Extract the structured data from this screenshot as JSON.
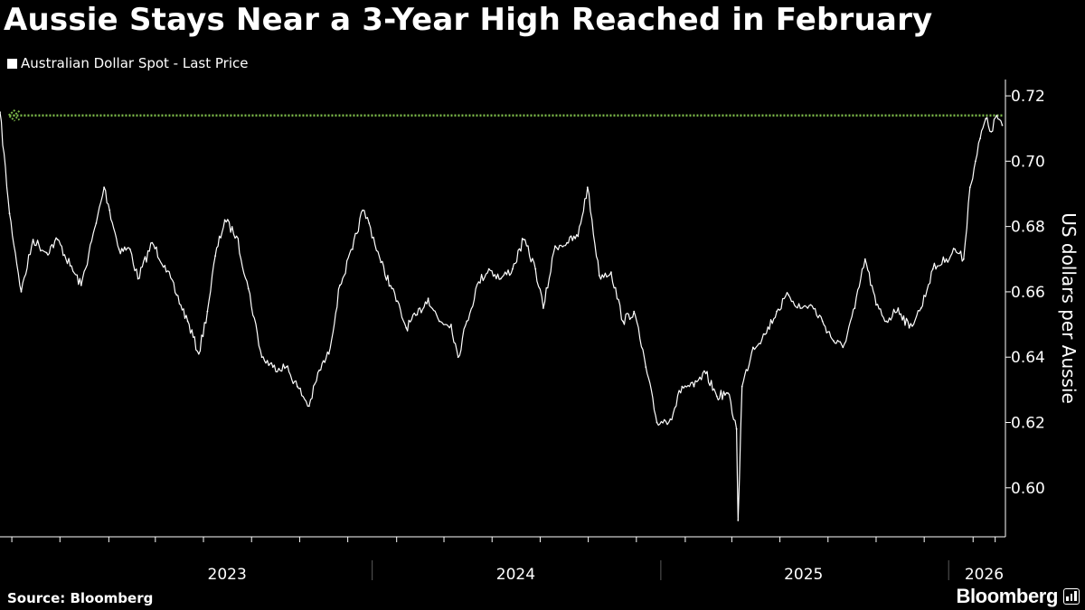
{
  "header": {
    "title": "Aussie Stays Near a 3-Year High Reached in February"
  },
  "footer": {
    "source": "Source: Bloomberg",
    "brand": "Bloomberg"
  },
  "colors": {
    "background": "#000000",
    "series": "#ffffff",
    "high_marker": "#7ab648",
    "axis": "#ffffff",
    "grid": "#5a5a5a"
  },
  "icons": {
    "brand_badge": "bloomberg-badge-icon"
  },
  "chart_data": {
    "type": "line",
    "title": "Aussie Stays Near a 3-Year High Reached in February",
    "xlabel": "",
    "ylabel": "US dollars per Aussie",
    "y_axis_side": "right",
    "ylim": [
      0.585,
      0.725
    ],
    "yticks": [
      0.6,
      0.62,
      0.64,
      0.66,
      0.68,
      0.7,
      0.72
    ],
    "ytick_labels": [
      "0.60",
      "0.62",
      "0.64",
      "0.66",
      "0.68",
      "0.70",
      "0.72"
    ],
    "xlim": [
      "2022-09-16",
      "2026-03-14"
    ],
    "x_labels": [
      {
        "label": "2023",
        "at": "2023-07-01"
      },
      {
        "label": "2024",
        "at": "2024-07-01"
      },
      {
        "label": "2025",
        "at": "2025-07-01"
      },
      {
        "label": "2026",
        "at": "2026-02-15"
      }
    ],
    "year_boundaries": [
      "2024-01-01",
      "2025-01-01",
      "2026-01-01"
    ],
    "month_ticks": [
      "2022-10-01",
      "2022-12-01",
      "2023-02-01",
      "2023-04-01",
      "2023-06-01",
      "2023-08-01",
      "2023-10-01",
      "2023-12-01",
      "2024-02-01",
      "2024-04-01",
      "2024-06-01",
      "2024-08-01",
      "2024-10-01",
      "2024-12-01",
      "2025-02-01",
      "2025-04-01",
      "2025-06-01",
      "2025-08-01",
      "2025-10-01",
      "2025-12-01",
      "2026-02-01",
      "2026-03-01"
    ],
    "grid": false,
    "legend": {
      "position": "top-left"
    },
    "series": [
      {
        "name": "Australian Dollar Spot - Last Price",
        "x": [
          "2022-09-16",
          "2022-09-28",
          "2022-10-13",
          "2022-10-28",
          "2022-11-14",
          "2022-11-28",
          "2022-12-14",
          "2022-12-28",
          "2023-01-16",
          "2023-01-26",
          "2023-02-02",
          "2023-02-14",
          "2023-02-28",
          "2023-03-10",
          "2023-03-28",
          "2023-04-13",
          "2023-04-28",
          "2023-05-12",
          "2023-05-26",
          "2023-06-06",
          "2023-06-16",
          "2023-06-28",
          "2023-07-13",
          "2023-07-28",
          "2023-08-14",
          "2023-08-28",
          "2023-09-14",
          "2023-09-28",
          "2023-10-13",
          "2023-10-26",
          "2023-11-07",
          "2023-11-21",
          "2023-12-07",
          "2023-12-20",
          "2023-12-28",
          "2024-01-12",
          "2024-01-26",
          "2024-02-13",
          "2024-02-27",
          "2024-03-12",
          "2024-03-26",
          "2024-04-10",
          "2024-04-19",
          "2024-04-30",
          "2024-05-15",
          "2024-05-28",
          "2024-06-12",
          "2024-06-27",
          "2024-07-11",
          "2024-07-26",
          "2024-08-05",
          "2024-08-20",
          "2024-09-04",
          "2024-09-18",
          "2024-09-30",
          "2024-10-15",
          "2024-10-30",
          "2024-11-14",
          "2024-11-28",
          "2024-12-13",
          "2024-12-27",
          "2025-01-13",
          "2025-01-28",
          "2025-02-12",
          "2025-02-27",
          "2025-03-13",
          "2025-03-27",
          "2025-04-07",
          "2025-04-09",
          "2025-04-14",
          "2025-04-28",
          "2025-05-13",
          "2025-05-28",
          "2025-06-12",
          "2025-06-27",
          "2025-07-10",
          "2025-07-25",
          "2025-08-08",
          "2025-08-20",
          "2025-09-04",
          "2025-09-17",
          "2025-10-01",
          "2025-10-14",
          "2025-10-29",
          "2025-11-12",
          "2025-11-27",
          "2025-12-12",
          "2025-12-29",
          "2026-01-09",
          "2026-01-20",
          "2026-01-28",
          "2026-02-04",
          "2026-02-10",
          "2026-02-17",
          "2026-02-24",
          "2026-03-03",
          "2026-03-10"
        ],
        "values": [
          0.715,
          0.684,
          0.66,
          0.676,
          0.672,
          0.676,
          0.668,
          0.662,
          0.681,
          0.692,
          0.685,
          0.673,
          0.673,
          0.664,
          0.675,
          0.668,
          0.659,
          0.651,
          0.641,
          0.654,
          0.671,
          0.682,
          0.677,
          0.661,
          0.64,
          0.637,
          0.637,
          0.631,
          0.625,
          0.636,
          0.641,
          0.662,
          0.673,
          0.685,
          0.681,
          0.669,
          0.661,
          0.649,
          0.653,
          0.658,
          0.651,
          0.65,
          0.64,
          0.651,
          0.663,
          0.667,
          0.664,
          0.667,
          0.676,
          0.667,
          0.655,
          0.674,
          0.675,
          0.677,
          0.692,
          0.665,
          0.666,
          0.651,
          0.654,
          0.637,
          0.62,
          0.621,
          0.631,
          0.631,
          0.635,
          0.628,
          0.629,
          0.618,
          0.59,
          0.631,
          0.643,
          0.647,
          0.654,
          0.659,
          0.655,
          0.656,
          0.651,
          0.645,
          0.643,
          0.655,
          0.67,
          0.656,
          0.651,
          0.655,
          0.649,
          0.655,
          0.667,
          0.67,
          0.673,
          0.67,
          0.692,
          0.7,
          0.707,
          0.713,
          0.709,
          0.714,
          0.711
        ]
      }
    ],
    "reference_lines": [
      {
        "type": "horizontal",
        "value": 0.714,
        "from": "2022-09-28",
        "to": "2026-03-12",
        "style": "dotted",
        "color": "#7ab648"
      }
    ]
  }
}
